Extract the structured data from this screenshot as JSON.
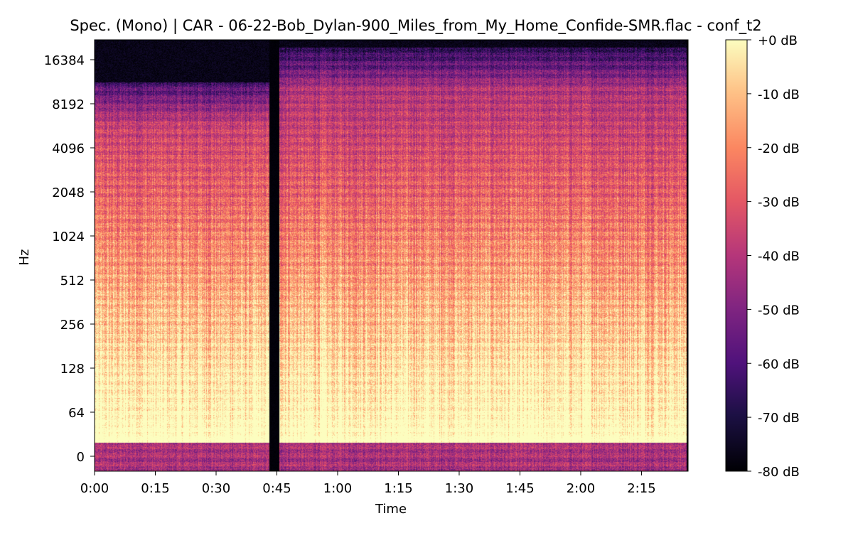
{
  "chart_data": {
    "type": "heatmap",
    "title": "Spec. (Mono) | CAR - 06-22-Bob_Dylan-900_Miles_from_My_Home_Confide-SMR.flac - conf_t2",
    "xlabel": "Time",
    "ylabel": "Hz",
    "x_ticks": [
      {
        "label": "0:00",
        "seconds": 0
      },
      {
        "label": "0:15",
        "seconds": 15
      },
      {
        "label": "0:30",
        "seconds": 30
      },
      {
        "label": "0:45",
        "seconds": 45
      },
      {
        "label": "1:00",
        "seconds": 60
      },
      {
        "label": "1:15",
        "seconds": 75
      },
      {
        "label": "1:30",
        "seconds": 90
      },
      {
        "label": "1:45",
        "seconds": 105
      },
      {
        "label": "2:00",
        "seconds": 120
      },
      {
        "label": "2:15",
        "seconds": 135
      }
    ],
    "xlim_seconds": [
      0,
      146.5
    ],
    "y_scale": "symlog (base 2)",
    "y_ticks": [
      0,
      64,
      128,
      256,
      512,
      1024,
      2048,
      4096,
      8192,
      16384
    ],
    "ylim_hz": [
      0,
      22050
    ],
    "colormap": "magma",
    "colorbar": {
      "label_unit": "dB",
      "ticks": [
        "+0 dB",
        "-10 dB",
        "-20 dB",
        "-30 dB",
        "-40 dB",
        "-50 dB",
        "-60 dB",
        "-70 dB",
        "-80 dB"
      ],
      "range_db": [
        -80,
        0
      ]
    },
    "segments": [
      {
        "start_s": 0,
        "end_s": 43,
        "content": "music",
        "cutoff_hz": 11500
      },
      {
        "start_s": 43,
        "end_s": 45.5,
        "content": "silence"
      },
      {
        "start_s": 45.5,
        "end_s": 146,
        "content": "music",
        "cutoff_hz": 20000
      }
    ]
  }
}
